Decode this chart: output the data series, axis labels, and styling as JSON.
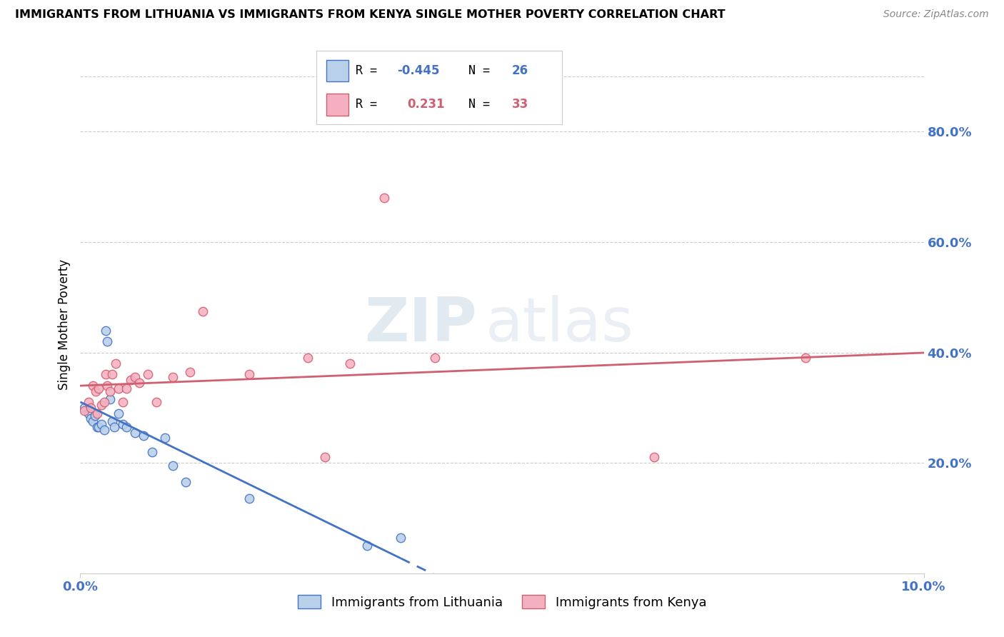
{
  "title": "IMMIGRANTS FROM LITHUANIA VS IMMIGRANTS FROM KENYA SINGLE MOTHER POVERTY CORRELATION CHART",
  "source": "Source: ZipAtlas.com",
  "ylabel": "Single Mother Poverty",
  "ymin": 0.0,
  "ymax": 0.9,
  "xmin": 0.0,
  "xmax": 0.1,
  "yticks": [
    0.2,
    0.4,
    0.6,
    0.8
  ],
  "ytick_labels": [
    "20.0%",
    "40.0%",
    "60.0%",
    "80.0%"
  ],
  "xtick_left": "0.0%",
  "xtick_right": "10.0%",
  "legend_label1": "Immigrants from Lithuania",
  "legend_label2": "Immigrants from Kenya",
  "color_lithuania_fill": "#b8d0ea",
  "color_lithuania_edge": "#4472c4",
  "color_kenya_fill": "#f4b0c0",
  "color_kenya_edge": "#d06070",
  "color_line_lithuania": "#4472c4",
  "color_line_kenya": "#d06070",
  "color_grid": "#cccccc",
  "color_tick_labels": "#4472c4",
  "watermark_zip": "ZIP",
  "watermark_atlas": "atlas",
  "lithuania_x": [
    0.0005,
    0.001,
    0.0012,
    0.0015,
    0.0017,
    0.002,
    0.0022,
    0.0025,
    0.0028,
    0.003,
    0.0032,
    0.0035,
    0.0038,
    0.004,
    0.0045,
    0.005,
    0.0055,
    0.0065,
    0.0075,
    0.0085,
    0.01,
    0.011,
    0.0125,
    0.02,
    0.034,
    0.038
  ],
  "lithuania_y": [
    0.3,
    0.29,
    0.28,
    0.275,
    0.285,
    0.265,
    0.265,
    0.27,
    0.26,
    0.44,
    0.42,
    0.315,
    0.275,
    0.265,
    0.29,
    0.27,
    0.265,
    0.255,
    0.25,
    0.22,
    0.245,
    0.195,
    0.165,
    0.135,
    0.05,
    0.065
  ],
  "kenya_x": [
    0.0005,
    0.001,
    0.0012,
    0.0015,
    0.0018,
    0.002,
    0.0022,
    0.0025,
    0.0028,
    0.003,
    0.0032,
    0.0035,
    0.0038,
    0.0042,
    0.0045,
    0.005,
    0.0055,
    0.006,
    0.0065,
    0.007,
    0.008,
    0.009,
    0.011,
    0.013,
    0.0145,
    0.02,
    0.027,
    0.029,
    0.032,
    0.036,
    0.042,
    0.068,
    0.086
  ],
  "kenya_y": [
    0.295,
    0.31,
    0.3,
    0.34,
    0.33,
    0.29,
    0.335,
    0.305,
    0.31,
    0.36,
    0.34,
    0.33,
    0.36,
    0.38,
    0.335,
    0.31,
    0.335,
    0.35,
    0.355,
    0.345,
    0.36,
    0.31,
    0.355,
    0.365,
    0.475,
    0.36,
    0.39,
    0.21,
    0.38,
    0.68,
    0.39,
    0.21,
    0.39
  ],
  "marker_size_lith": 80,
  "marker_size_kenya": 80
}
